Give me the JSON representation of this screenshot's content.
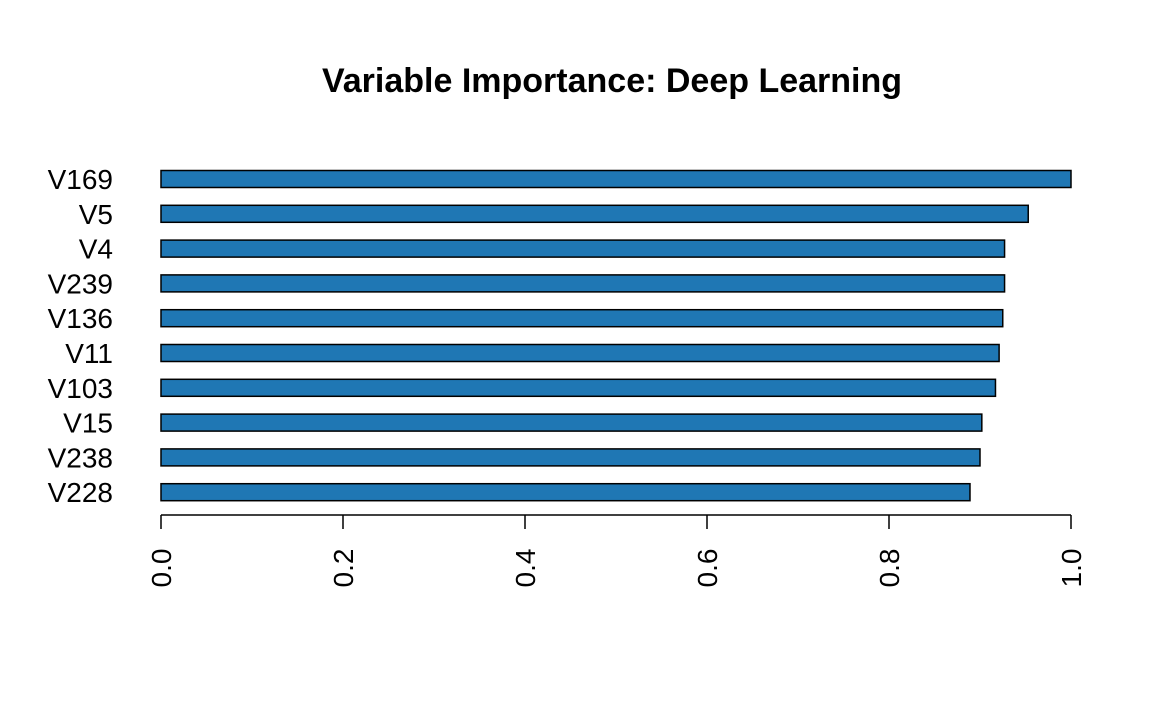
{
  "chart_data": {
    "type": "bar",
    "orientation": "horizontal",
    "title": "Variable Importance: Deep Learning",
    "xlabel": "",
    "ylabel": "",
    "categories": [
      "V169",
      "V5",
      "V4",
      "V239",
      "V136",
      "V11",
      "V103",
      "V15",
      "V238",
      "V228"
    ],
    "values": [
      1.0,
      0.953,
      0.927,
      0.927,
      0.925,
      0.921,
      0.917,
      0.902,
      0.9,
      0.889
    ],
    "xlim": [
      0,
      1
    ],
    "xticks": [
      "0.0",
      "0.2",
      "0.4",
      "0.6",
      "0.8",
      "1.0"
    ],
    "tick_label_orientation": "rotated-vertical",
    "grid": false,
    "legend": "none",
    "bar_color": "#1f77b4",
    "bar_edge_color": "#000000"
  }
}
